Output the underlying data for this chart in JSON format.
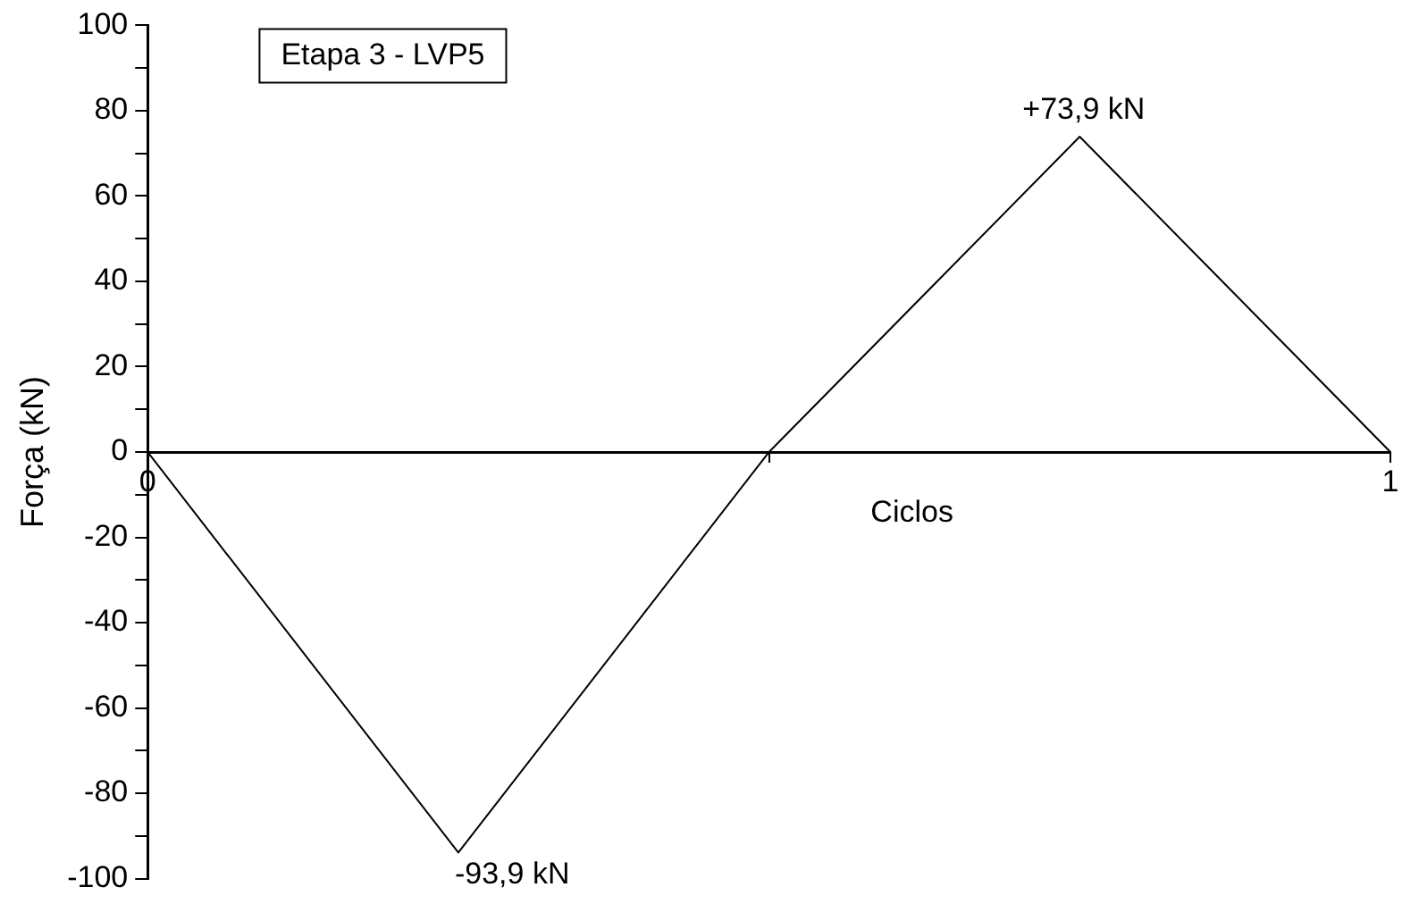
{
  "chart_data": {
    "type": "line",
    "title": "Etapa 3 - LVP5",
    "xlabel": "Ciclos",
    "ylabel": "Força (kN)",
    "x": [
      0,
      0.25,
      0.5,
      0.75,
      1
    ],
    "series": [
      {
        "color": "#000000",
        "values": [
          0,
          -93.9,
          0,
          73.9,
          0
        ]
      }
    ],
    "xlim": [
      0,
      1
    ],
    "xticks": [
      0,
      {
        "value": 0.5,
        "label": null
      },
      1
    ],
    "ylim": [
      -100,
      100
    ],
    "yticks": [
      -100,
      {
        "value": -90,
        "label": null
      },
      -80,
      {
        "value": -70,
        "label": null
      },
      -60,
      {
        "value": -50,
        "label": null
      },
      -40,
      {
        "value": -30,
        "label": null
      },
      -20,
      {
        "value": -10,
        "label": null
      },
      0,
      {
        "value": 10,
        "label": null
      },
      20,
      {
        "value": 30,
        "label": null
      },
      40,
      {
        "value": 50,
        "label": null
      },
      60,
      {
        "value": 70,
        "label": null
      },
      80,
      {
        "value": 90,
        "label": null
      },
      100
    ],
    "annotations": [
      {
        "text": "+73,9 kN",
        "x": 0.75,
        "y": 73.9
      },
      {
        "text": "-93,9 kN",
        "x": 0.25,
        "y": -93.9
      }
    ],
    "grid": false,
    "legend": false,
    "marker": "none",
    "line_style": "solid"
  }
}
